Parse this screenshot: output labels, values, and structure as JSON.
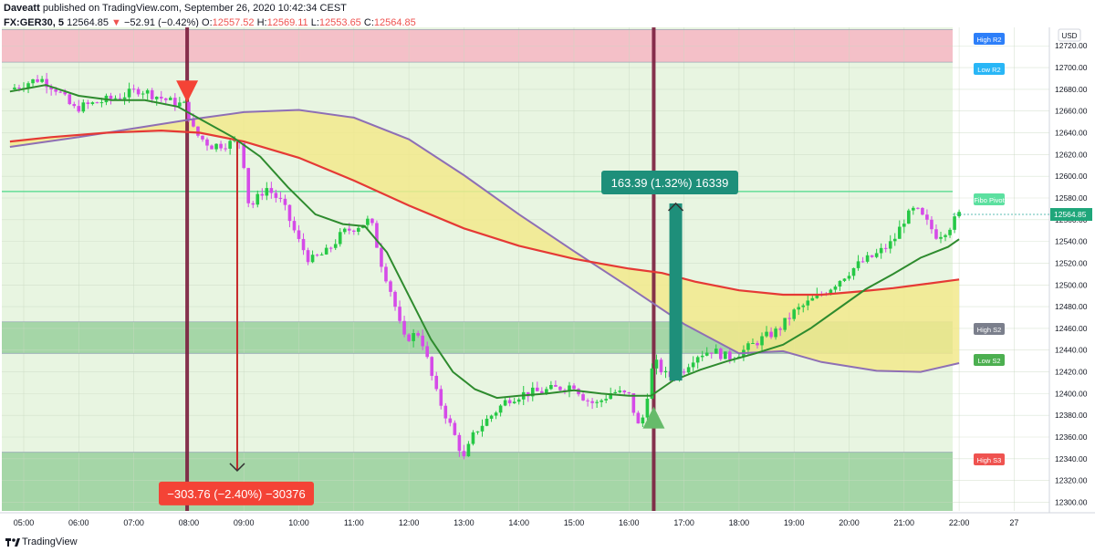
{
  "header": {
    "author": "Daveatt",
    "published_text": "published on TradingView.com, September 26, 2020 10:42:34 CEST",
    "symbol": "FX:GER30, 5",
    "last": "12564.85",
    "change_arrow": "▼",
    "change": "−52.91 (−0.42%)",
    "o_label": "O:",
    "o_value": "12557.52",
    "h_label": "H:",
    "h_value": "12569.11",
    "l_label": "L:",
    "l_value": "12553.65",
    "c_label": "C:",
    "c_value": "12564.85"
  },
  "footer": {
    "brand": "TradingView"
  },
  "colors": {
    "up": "#26c845",
    "down": "#d54be8",
    "accent_red": "#ef5350",
    "zone_green": "#a5d6a7",
    "zone_light": "#e8f5e1",
    "zone_pink": "#f4c0c8",
    "cloud": "#f2e98c",
    "sma_fast": "#2e8b2e",
    "sma_slow": "#e53935",
    "band": "#8e6fb5",
    "vline": "#7b1e3e",
    "measure_down": "#c62828",
    "measure_up": "#1e8f7a"
  },
  "chart_data": {
    "type": "candlestick",
    "currency": "USD",
    "x_ticks": [
      "05:00",
      "06:00",
      "07:00",
      "08:00",
      "09:00",
      "10:00",
      "11:00",
      "12:00",
      "13:00",
      "14:00",
      "15:00",
      "16:00",
      "17:00",
      "18:00",
      "19:00",
      "20:00",
      "21:00",
      "22:00",
      "27"
    ],
    "y_ticks": [
      "12720.00",
      "12700.00",
      "12680.00",
      "12660.00",
      "12640.00",
      "12620.00",
      "12600.00",
      "12580.00",
      "12560.00",
      "12540.00",
      "12520.00",
      "12500.00",
      "12480.00",
      "12460.00",
      "12440.00",
      "12420.00",
      "12400.00",
      "12380.00",
      "12360.00",
      "12340.00",
      "12320.00",
      "12300.00"
    ],
    "ylim": [
      12292,
      12737
    ],
    "xlim": [
      4.75,
      22.8
    ],
    "last_price_label": "12564.85",
    "price_path": [
      [
        4.75,
        12680
      ],
      [
        5.0,
        12685
      ],
      [
        5.3,
        12690
      ],
      [
        5.6,
        12680
      ],
      [
        5.9,
        12662
      ],
      [
        6.2,
        12666
      ],
      [
        6.5,
        12670
      ],
      [
        6.8,
        12674
      ],
      [
        7.1,
        12680
      ],
      [
        7.4,
        12674
      ],
      [
        7.7,
        12668
      ],
      [
        7.95,
        12665
      ],
      [
        8.1,
        12640
      ],
      [
        8.4,
        12628
      ],
      [
        8.7,
        12630
      ],
      [
        8.95,
        12632
      ],
      [
        9.1,
        12570
      ],
      [
        9.4,
        12590
      ],
      [
        9.7,
        12575
      ],
      [
        10.0,
        12540
      ],
      [
        10.2,
        12522
      ],
      [
        10.5,
        12530
      ],
      [
        10.8,
        12548
      ],
      [
        11.1,
        12555
      ],
      [
        11.3,
        12560
      ],
      [
        11.5,
        12520
      ],
      [
        11.7,
        12490
      ],
      [
        11.9,
        12450
      ],
      [
        12.2,
        12456
      ],
      [
        12.5,
        12400
      ],
      [
        12.8,
        12365
      ],
      [
        13.0,
        12340
      ],
      [
        13.2,
        12365
      ],
      [
        13.5,
        12380
      ],
      [
        13.8,
        12395
      ],
      [
        14.1,
        12400
      ],
      [
        14.4,
        12402
      ],
      [
        14.7,
        12405
      ],
      [
        15.0,
        12408
      ],
      [
        15.2,
        12395
      ],
      [
        15.4,
        12390
      ],
      [
        15.7,
        12402
      ],
      [
        16.0,
        12398
      ],
      [
        16.2,
        12365
      ],
      [
        16.45,
        12430
      ],
      [
        16.7,
        12415
      ],
      [
        16.95,
        12420
      ],
      [
        17.2,
        12435
      ],
      [
        17.5,
        12440
      ],
      [
        17.8,
        12433
      ],
      [
        18.1,
        12440
      ],
      [
        18.4,
        12450
      ],
      [
        18.7,
        12458
      ],
      [
        19.0,
        12475
      ],
      [
        19.3,
        12485
      ],
      [
        19.6,
        12495
      ],
      [
        19.9,
        12508
      ],
      [
        20.2,
        12520
      ],
      [
        20.5,
        12528
      ],
      [
        20.8,
        12540
      ],
      [
        21.0,
        12560
      ],
      [
        21.2,
        12570
      ],
      [
        21.4,
        12558
      ],
      [
        21.6,
        12545
      ],
      [
        21.8,
        12552
      ],
      [
        22.0,
        12564.85
      ]
    ],
    "sma_fast": [
      [
        4.75,
        12678
      ],
      [
        5.4,
        12684
      ],
      [
        6.0,
        12674
      ],
      [
        6.6,
        12670
      ],
      [
        7.2,
        12670
      ],
      [
        7.8,
        12664
      ],
      [
        8.3,
        12650
      ],
      [
        8.8,
        12636
      ],
      [
        9.3,
        12618
      ],
      [
        9.8,
        12590
      ],
      [
        10.3,
        12565
      ],
      [
        10.8,
        12556
      ],
      [
        11.2,
        12554
      ],
      [
        11.6,
        12530
      ],
      [
        12.0,
        12490
      ],
      [
        12.4,
        12450
      ],
      [
        12.8,
        12420
      ],
      [
        13.2,
        12404
      ],
      [
        13.6,
        12396
      ],
      [
        14.0,
        12398
      ],
      [
        14.5,
        12400
      ],
      [
        15.0,
        12403
      ],
      [
        15.5,
        12400
      ],
      [
        16.0,
        12398
      ],
      [
        16.4,
        12398
      ],
      [
        16.8,
        12412
      ],
      [
        17.3,
        12422
      ],
      [
        17.8,
        12430
      ],
      [
        18.3,
        12437
      ],
      [
        18.8,
        12445
      ],
      [
        19.3,
        12460
      ],
      [
        19.8,
        12478
      ],
      [
        20.3,
        12496
      ],
      [
        20.8,
        12510
      ],
      [
        21.3,
        12525
      ],
      [
        21.8,
        12535
      ],
      [
        22.0,
        12542
      ]
    ],
    "sma_slow": [
      [
        4.75,
        12632
      ],
      [
        5.5,
        12636
      ],
      [
        6.5,
        12640
      ],
      [
        7.5,
        12642
      ],
      [
        8.2,
        12640
      ],
      [
        9.0,
        12632
      ],
      [
        10.0,
        12617
      ],
      [
        11.0,
        12596
      ],
      [
        12.0,
        12573
      ],
      [
        13.0,
        12552
      ],
      [
        14.0,
        12536
      ],
      [
        15.0,
        12524
      ],
      [
        16.0,
        12515
      ],
      [
        16.6,
        12511
      ],
      [
        17.2,
        12503
      ],
      [
        18.0,
        12495
      ],
      [
        18.8,
        12491
      ],
      [
        19.5,
        12491
      ],
      [
        20.2,
        12494
      ],
      [
        20.8,
        12497
      ],
      [
        21.4,
        12501
      ],
      [
        22.0,
        12505
      ]
    ],
    "band_curve": [
      [
        4.75,
        12627
      ],
      [
        6.0,
        12636
      ],
      [
        7.0,
        12644
      ],
      [
        8.0,
        12652
      ],
      [
        9.0,
        12659
      ],
      [
        10.0,
        12661
      ],
      [
        11.0,
        12654
      ],
      [
        12.0,
        12634
      ],
      [
        13.0,
        12601
      ],
      [
        14.0,
        12565
      ],
      [
        15.0,
        12531
      ],
      [
        16.0,
        12498
      ],
      [
        17.0,
        12464
      ],
      [
        18.0,
        12437
      ],
      [
        18.8,
        12439
      ],
      [
        19.5,
        12429
      ],
      [
        20.5,
        12421
      ],
      [
        21.3,
        12420
      ],
      [
        22.0,
        12428
      ]
    ],
    "pivot_levels": [
      {
        "label": "High R2",
        "value": 12735,
        "color": "#2d7ff9"
      },
      {
        "label": "Low R2",
        "value": 12705,
        "color": "#29b6f6"
      },
      {
        "label": "Fibo Pivot",
        "value": 12586,
        "color": "#5ce0a0"
      },
      {
        "label": "High S2",
        "value": 12466,
        "color": "#7b7f8c"
      },
      {
        "label": "Low S2",
        "value": 12437,
        "color": "#4caf50"
      },
      {
        "label": "High S3",
        "value": 12346,
        "color": "#ef5350"
      }
    ],
    "zones": [
      {
        "from": 12705,
        "to": 12735,
        "color": "#f4c0c8"
      },
      {
        "from": 12437,
        "to": 12466,
        "color": "#a5d6a7"
      },
      {
        "from": 12292,
        "to": 12346,
        "color": "#a5d6a7"
      }
    ],
    "signals": [
      {
        "type": "sell",
        "time": 7.97,
        "price": 12678
      },
      {
        "type": "buy",
        "time": 16.45,
        "price": 12378
      }
    ],
    "vertical_lines": [
      7.97,
      16.45
    ],
    "measures": [
      {
        "time": 8.88,
        "from": 12632,
        "to": 12329,
        "label": "−303.76 (−2.40%) −30376",
        "color": "#f44336"
      },
      {
        "time": 16.85,
        "from": 12412,
        "to": 12575,
        "label": "163.39 (1.32%) 16339",
        "color": "#1e8f7a"
      }
    ]
  }
}
